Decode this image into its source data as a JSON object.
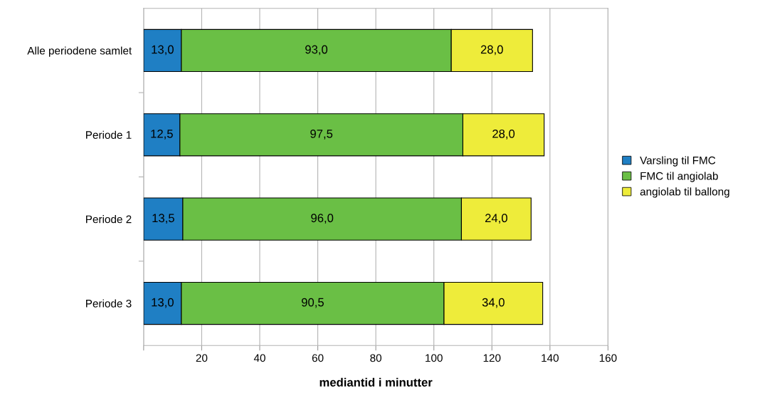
{
  "chart_data": {
    "type": "bar",
    "orientation": "horizontal",
    "stacked": true,
    "xlabel": "mediantid i minutter",
    "categories": [
      "Alle periodene samlet",
      "Periode 1",
      "Periode 2",
      "Periode 3"
    ],
    "series": [
      {
        "name": "Varsling til FMC",
        "color": "#1f7fc4",
        "values": [
          13.0,
          12.5,
          13.5,
          13.0
        ],
        "value_labels": [
          "13,0",
          "12,5",
          "13,5",
          "13,0"
        ]
      },
      {
        "name": "FMC til angiolab",
        "color": "#6abf45",
        "values": [
          93.0,
          97.5,
          96.0,
          90.5
        ],
        "value_labels": [
          "93,0",
          "97,5",
          "96,0",
          "90,5"
        ]
      },
      {
        "name": "angiolab til ballong",
        "color": "#eeec3a",
        "values": [
          28.0,
          28.0,
          24.0,
          34.0
        ],
        "value_labels": [
          "28,0",
          "28,0",
          "24,0",
          "34,0"
        ]
      }
    ],
    "xlim": [
      0,
      160
    ],
    "xticks": [
      {
        "value": 0,
        "label": null
      },
      20,
      40,
      60,
      80,
      100,
      120,
      140,
      160
    ],
    "grid": "x",
    "legend": "right"
  }
}
